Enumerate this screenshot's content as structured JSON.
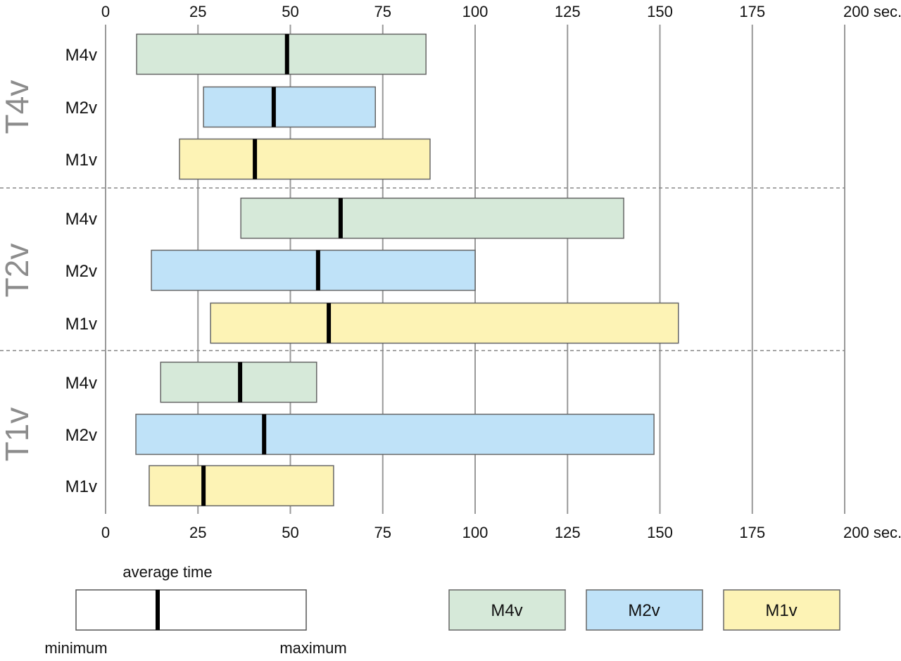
{
  "chart_data": {
    "type": "bar",
    "subtype": "range-bar with average marker",
    "x_unit_label": "sec.",
    "xlim": [
      0,
      200
    ],
    "x_ticks": [
      0,
      25,
      50,
      75,
      100,
      125,
      150,
      175,
      200
    ],
    "x_tick_labels": [
      "0",
      "25",
      "50",
      "75",
      "100",
      "125",
      "150",
      "175",
      "200 sec."
    ],
    "grid": true,
    "groups": [
      {
        "name": "T4v",
        "rows": [
          {
            "label": "M4v",
            "series": "M4v",
            "min": 8.4,
            "max": 86.7,
            "avg": 49.1
          },
          {
            "label": "M2v",
            "series": "M2v",
            "min": 26.5,
            "max": 73.0,
            "avg": 45.5
          },
          {
            "label": "M1v",
            "series": "M1v",
            "min": 20.0,
            "max": 87.8,
            "avg": 40.4
          }
        ]
      },
      {
        "name": "T2v",
        "rows": [
          {
            "label": "M4v",
            "series": "M4v",
            "min": 36.6,
            "max": 140.2,
            "avg": 63.6
          },
          {
            "label": "M2v",
            "series": "M2v",
            "min": 12.4,
            "max": 100.0,
            "avg": 57.5
          },
          {
            "label": "M1v",
            "series": "M1v",
            "min": 28.4,
            "max": 155.0,
            "avg": 60.4
          }
        ]
      },
      {
        "name": "T1v",
        "rows": [
          {
            "label": "M4v",
            "series": "M4v",
            "min": 14.9,
            "max": 57.1,
            "avg": 36.4
          },
          {
            "label": "M2v",
            "series": "M2v",
            "min": 8.2,
            "max": 148.4,
            "avg": 42.9
          },
          {
            "label": "M1v",
            "series": "M1v",
            "min": 11.8,
            "max": 61.7,
            "avg": 26.5
          }
        ]
      }
    ],
    "legend": {
      "placement": "bottom",
      "entries": [
        {
          "name": "M4v",
          "color": "#d6e9d9"
        },
        {
          "name": "M2v",
          "color": "#bfe2f8"
        },
        {
          "name": "M1v",
          "color": "#fdf3b5"
        }
      ],
      "key": {
        "average": "average time",
        "minimum": "minimum",
        "maximum": "maximum"
      }
    },
    "colors": {
      "grid": "#999999",
      "bar_stroke": "#666666",
      "avg_marker": "#000000",
      "group_label": "#8c8c8c"
    }
  }
}
